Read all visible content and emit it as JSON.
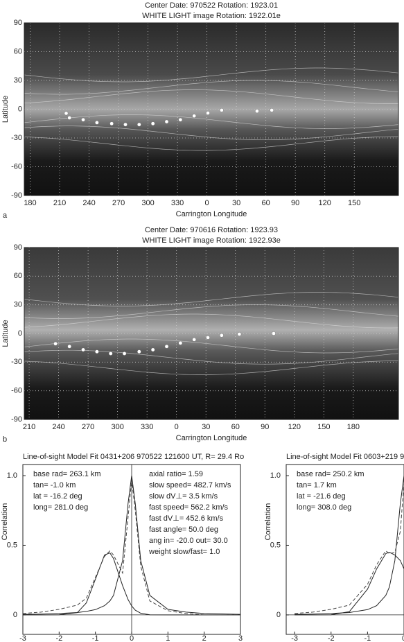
{
  "chart_data": [
    {
      "type": "map",
      "title": "Center Date: 970522 Rotation: 1923.01",
      "subtitle": "WHITE LIGHT image Rotation: 1922.01e",
      "panel": "a",
      "xlabel": "Carrington Longitude",
      "ylabel": "Latitude",
      "xlim": [
        174,
        555
      ],
      "ylim": [
        -90,
        90
      ],
      "xticks": [
        180,
        210,
        240,
        270,
        300,
        330,
        {
          "value": 360,
          "label": "0"
        },
        {
          "value": 390,
          "label": "30"
        },
        {
          "value": 420,
          "label": "60"
        },
        {
          "value": 450,
          "label": "90"
        },
        {
          "value": 480,
          "label": "120"
        },
        {
          "value": 510,
          "label": "150"
        }
      ],
      "yticks": [
        90,
        60,
        30,
        0,
        -30,
        -60,
        -90
      ],
      "x": [
        216.7,
        220,
        234,
        248,
        263,
        277,
        291,
        305,
        319,
        333,
        347,
        361,
        375,
        411,
        426
      ],
      "values": [
        -4.3,
        -9,
        -11,
        -14,
        -15,
        -16,
        -16,
        -15,
        -13,
        -11,
        -7,
        -4,
        -1,
        -2,
        -1
      ],
      "color": "#ffffff",
      "grid": true
    },
    {
      "type": "map",
      "title": "Center Date: 970616 Rotation: 1923.93",
      "subtitle": "WHITE LIGHT image Rotation: 1922.93e",
      "panel": "b",
      "xlabel": "Carrington Longitude",
      "ylabel": "Latitude",
      "xlim": [
        205,
        586
      ],
      "ylim": [
        -90,
        90
      ],
      "xticks": [
        210,
        240,
        270,
        300,
        330,
        {
          "value": 360,
          "label": "0"
        },
        {
          "value": 390,
          "label": "30"
        },
        {
          "value": 420,
          "label": "60"
        },
        {
          "value": 450,
          "label": "90"
        },
        {
          "value": 480,
          "label": "120"
        },
        {
          "value": 510,
          "label": "150"
        },
        {
          "value": 540,
          "label": "180"
        }
      ],
      "yticks": [
        90,
        60,
        30,
        0,
        -30,
        -60,
        -90
      ],
      "x": [
        236.8,
        251,
        265,
        279,
        293,
        307,
        322,
        336,
        350,
        364,
        378,
        392,
        406,
        424,
        459
      ],
      "values": [
        -10.7,
        -13.6,
        -17,
        -19,
        -21,
        -21,
        -19,
        -17,
        -13.6,
        -10,
        -6.4,
        -4.3,
        -2,
        -0.7,
        0
      ],
      "color": "#ffffff",
      "grid": true
    },
    {
      "type": "line",
      "title": "Line-of-sight Model Fit 0431+206 970522 121600 UT, R= 29.4 Ro",
      "ylabel": "Correlation",
      "notes": [
        [
          "base rad= 263.1 km",
          "tan= -1.0 km",
          "lat = -16.2 deg",
          "long= 281.0 deg"
        ],
        [
          "axial ratio= 1.59",
          "slow speed= 482.7 km/s",
          "slow dV⊥= 3.5 km/s",
          "fast speed= 562.2 km/s",
          "fast dV⊥= 452.6 km/s",
          "fast angle= 50.0 deg",
          "ang in= -20.0 out= 30.0",
          "weight slow/fast= 1.0"
        ]
      ],
      "xlim": [
        -3,
        3
      ],
      "ylim": [
        -0.14,
        1.08
      ],
      "xticks": [
        -3,
        -2,
        -1,
        0,
        1,
        2,
        3
      ],
      "yticks": [
        {
          "value": 1,
          "label": "1.0"
        },
        0.5,
        0
      ],
      "x": [
        -3,
        -2.5,
        -2,
        -1.5,
        -1.25,
        -1,
        -0.75,
        -0.6,
        -0.5,
        -0.25,
        -0.1,
        0,
        0.1,
        0.25,
        0.5,
        1,
        1.5,
        2,
        3
      ],
      "series": [
        {
          "color": "#222222",
          "dash": false,
          "values": [
            0.004,
            0.006,
            0.01,
            0.017,
            0.025,
            0.038,
            0.066,
            0.1,
            0.14,
            0.39,
            0.8,
            1,
            0.8,
            0.39,
            0.14,
            0.04,
            0.02,
            0.01,
            0.004
          ]
        },
        {
          "color": "#222222",
          "dash": false,
          "values": [
            0,
            0,
            0.001,
            0.016,
            0.086,
            0.256,
            0.43,
            0.445,
            0.405,
            0.21,
            0.11,
            0.064,
            0.034,
            0.012,
            0.001,
            0,
            0,
            0,
            0
          ]
        },
        {
          "color": "#444444",
          "dash": true,
          "values": [
            0.01,
            0.02,
            0.04,
            0.07,
            0.12,
            0.27,
            0.42,
            0.46,
            0.43,
            0.3,
            0.7,
            0.97,
            0.75,
            0.35,
            0.1,
            0.03,
            0.01,
            0,
            0
          ]
        }
      ]
    },
    {
      "type": "line",
      "title": "Line-of-sight Model Fit 0603+219 9",
      "ylabel": "Correlation",
      "notes": [
        [
          "base rad= 250.2 km",
          "tan= 1.7 km",
          "lat = -21.6 deg",
          "long= 308.0 deg"
        ]
      ],
      "xlim": [
        -3.23,
        0
      ],
      "ylim": [
        -0.14,
        1.08
      ],
      "xticks": [
        -3,
        -2,
        -1,
        0
      ],
      "yticks": [
        {
          "value": 1,
          "label": "1.0"
        },
        0.5,
        0
      ],
      "x": [
        -3,
        -2.5,
        -2,
        -1.5,
        -1,
        -0.75,
        -0.5,
        -0.4,
        -0.25,
        -0.1,
        0
      ],
      "series": [
        {
          "color": "#222222",
          "dash": false,
          "values": [
            0.004,
            0.006,
            0.01,
            0.017,
            0.038,
            0.066,
            0.14,
            0.2,
            0.39,
            0.8,
            1
          ]
        },
        {
          "color": "#222222",
          "dash": false,
          "values": [
            0,
            0,
            0.0008,
            0.023,
            0.185,
            0.33,
            0.44,
            0.45,
            0.43,
            0.39,
            0.33
          ]
        },
        {
          "color": "#444444",
          "dash": true,
          "values": [
            0.01,
            0.02,
            0.04,
            0.07,
            0.22,
            0.36,
            0.46,
            0.44,
            0.45,
            0.6,
            0.95
          ]
        }
      ]
    }
  ]
}
